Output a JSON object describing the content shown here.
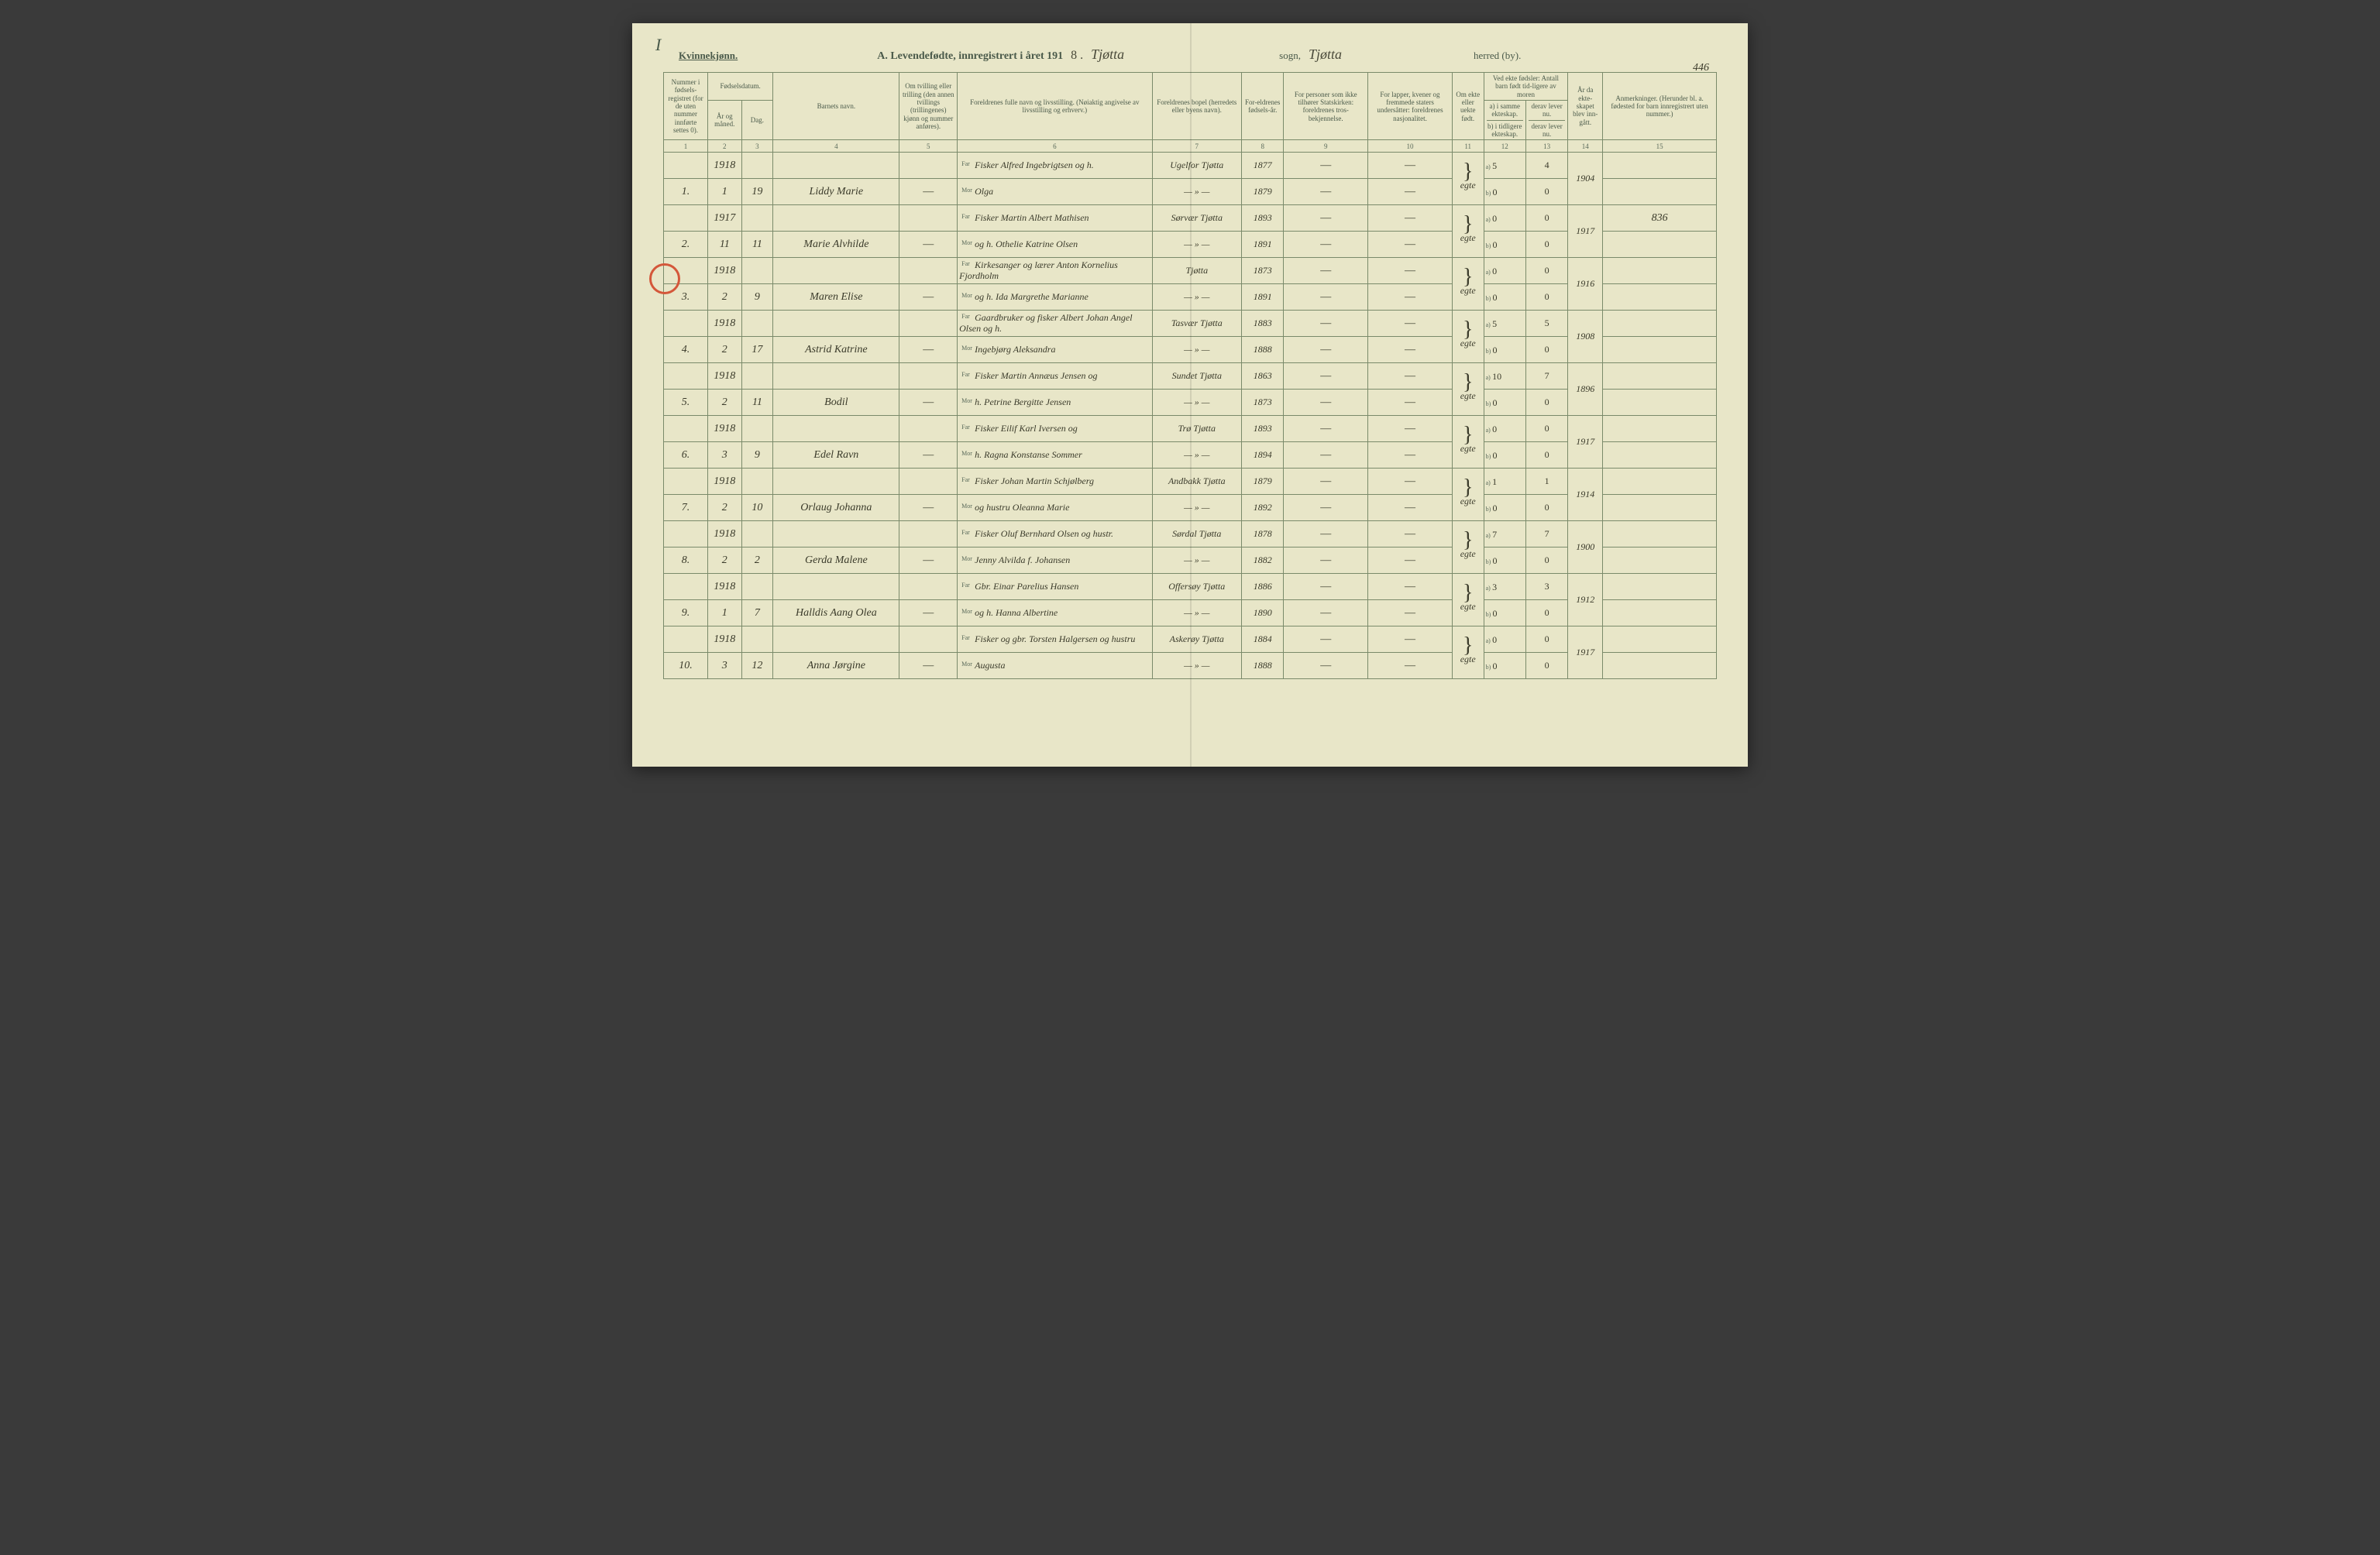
{
  "corner_mark": "I",
  "header": {
    "kvinne_label": "Kvinnekjønn.",
    "title_prefix": "A. Levendefødte, innregistrert i året 191",
    "year_suffix": "8 .",
    "sogn_value": "Tjøtta",
    "sogn_label": "sogn,",
    "herred_value": "Tjøtta",
    "herred_label": "herred (by).",
    "page_number": "446"
  },
  "columns": {
    "c1": "Nummer i fødsels-registret (for de uten nummer innførte settes 0).",
    "c2_top": "Fødselsdatum.",
    "c2a": "År og måned.",
    "c2b": "Dag.",
    "c4": "Barnets navn.",
    "c5": "Om tvilling eller trilling (den annen tvillings (trillingenes) kjønn og nummer anføres).",
    "c6": "Foreldrenes fulle navn og livsstilling. (Nøiaktig angivelse av livsstilling og erhverv.)",
    "c7": "Foreldrenes bopel (herredets eller byens navn).",
    "c8": "For-eldrenes fødsels-år.",
    "c9": "For personer som ikke tilhører Statskirken: foreldrenes tros-bekjennelse.",
    "c10": "For lapper, kvener og fremmede staters undersåtter: foreldrenes nasjonalitet.",
    "c11": "Om ekte eller uekte født.",
    "c12_top": "Ved ekte fødsler: Antall barn født tid-ligere av moren",
    "c12a": "a) i samme ekteskap.",
    "c12b": "b) i tidligere ekteskap.",
    "c13a": "derav lever nu.",
    "c13b": "derav lever nu.",
    "c14": "År da ekte-skapet blev inn-gått.",
    "c15": "Anmerkninger. (Herunder bl. a. fødested for barn innregistrert uten nummer.)"
  },
  "colnums": [
    "1",
    "2",
    "3",
    "4",
    "5",
    "6",
    "7",
    "8",
    "9",
    "10",
    "11",
    "12",
    "13",
    "14",
    "15"
  ],
  "far_label": "Far",
  "mor_label": "Mor",
  "a_label": "a)",
  "b_label": "b)",
  "rows": [
    {
      "num": "",
      "year": "1918",
      "day": "",
      "name": "",
      "twin": "",
      "parent_label": "Far",
      "parent": "Fisker Alfred Ingebrigtsen og h.",
      "bopel": "Ugelfor Tjøtta",
      "fyear": "1877",
      "tros": "—",
      "nasj": "—",
      "ekte": "",
      "ab": "a",
      "aval": "5",
      "dval": "4",
      "aar": "",
      "anm": ""
    },
    {
      "num": "1.",
      "year": "1",
      "day": "19",
      "name": "Liddy Marie",
      "twin": "—",
      "parent_label": "Mor",
      "parent": "Olga",
      "bopel": "— » —",
      "fyear": "1879",
      "tros": "—",
      "nasj": "—",
      "ekte": "egte",
      "ab": "b",
      "aval": "0",
      "dval": "0",
      "aar": "1904",
      "anm": ""
    },
    {
      "num": "",
      "year": "1917",
      "day": "",
      "name": "",
      "twin": "",
      "parent_label": "Far",
      "parent": "Fisker Martin Albert Mathisen",
      "bopel": "Sørvær Tjøtta",
      "fyear": "1893",
      "tros": "—",
      "nasj": "—",
      "ekte": "",
      "ab": "a",
      "aval": "0",
      "dval": "0",
      "aar": "",
      "anm": "836"
    },
    {
      "num": "2.",
      "year": "11",
      "day": "11",
      "name": "Marie Alvhilde",
      "twin": "—",
      "parent_label": "Mor",
      "parent": "og h. Othelie Katrine Olsen",
      "bopel": "— » —",
      "fyear": "1891",
      "tros": "—",
      "nasj": "—",
      "ekte": "egte",
      "ab": "b",
      "aval": "0",
      "dval": "0",
      "aar": "1917",
      "anm": ""
    },
    {
      "num": "",
      "year": "1918",
      "day": "",
      "name": "",
      "twin": "",
      "parent_label": "Far",
      "parent": "Kirkesanger og lærer Anton Kornelius Fjordholm",
      "bopel": "Tjøtta",
      "fyear": "1873",
      "tros": "—",
      "nasj": "—",
      "ekte": "",
      "ab": "a",
      "aval": "0",
      "dval": "0",
      "aar": "",
      "anm": ""
    },
    {
      "num": "3.",
      "year": "2",
      "day": "9",
      "name": "Maren Elise",
      "twin": "—",
      "parent_label": "Mor",
      "parent": "og h. Ida Margrethe Marianne",
      "bopel": "— » —",
      "fyear": "1891",
      "tros": "—",
      "nasj": "—",
      "ekte": "egte",
      "ab": "b",
      "aval": "0",
      "dval": "0",
      "aar": "1916",
      "anm": ""
    },
    {
      "num": "",
      "year": "1918",
      "day": "",
      "name": "",
      "twin": "",
      "parent_label": "Far",
      "parent": "Gaardbruker og fisker Albert Johan Angel Olsen og h.",
      "bopel": "Tasvær Tjøtta",
      "fyear": "1883",
      "tros": "—",
      "nasj": "—",
      "ekte": "",
      "ab": "a",
      "aval": "5",
      "dval": "5",
      "aar": "",
      "anm": ""
    },
    {
      "num": "4.",
      "year": "2",
      "day": "17",
      "name": "Astrid Katrine",
      "twin": "—",
      "parent_label": "Mor",
      "parent": "Ingebjørg Aleksandra",
      "bopel": "— » —",
      "fyear": "1888",
      "tros": "—",
      "nasj": "—",
      "ekte": "egte",
      "ab": "b",
      "aval": "0",
      "dval": "0",
      "aar": "1908",
      "anm": ""
    },
    {
      "num": "",
      "year": "1918",
      "day": "",
      "name": "",
      "twin": "",
      "parent_label": "Far",
      "parent": "Fisker Martin Annæus Jensen og",
      "bopel": "Sundet Tjøtta",
      "fyear": "1863",
      "tros": "—",
      "nasj": "—",
      "ekte": "",
      "ab": "a",
      "aval": "10",
      "dval": "7",
      "aar": "",
      "anm": ""
    },
    {
      "num": "5.",
      "year": "2",
      "day": "11",
      "name": "Bodil",
      "twin": "—",
      "parent_label": "Mor",
      "parent": "h. Petrine Bergitte Jensen",
      "bopel": "— » —",
      "fyear": "1873",
      "tros": "—",
      "nasj": "—",
      "ekte": "egte",
      "ab": "b",
      "aval": "0",
      "dval": "0",
      "aar": "1896",
      "anm": ""
    },
    {
      "num": "",
      "year": "1918",
      "day": "",
      "name": "",
      "twin": "",
      "parent_label": "Far",
      "parent": "Fisker Eilif Karl Iversen og",
      "bopel": "Trø Tjøtta",
      "fyear": "1893",
      "tros": "—",
      "nasj": "—",
      "ekte": "",
      "ab": "a",
      "aval": "0",
      "dval": "0",
      "aar": "",
      "anm": ""
    },
    {
      "num": "6.",
      "year": "3",
      "day": "9",
      "name": "Edel Ravn",
      "twin": "—",
      "parent_label": "Mor",
      "parent": "h. Ragna Konstanse Sommer",
      "bopel": "— » —",
      "fyear": "1894",
      "tros": "—",
      "nasj": "—",
      "ekte": "egte",
      "ab": "b",
      "aval": "0",
      "dval": "0",
      "aar": "1917",
      "anm": ""
    },
    {
      "num": "",
      "year": "1918",
      "day": "",
      "name": "",
      "twin": "",
      "parent_label": "Far",
      "parent": "Fisker Johan Martin Schjølberg",
      "bopel": "Andbakk Tjøtta",
      "fyear": "1879",
      "tros": "—",
      "nasj": "—",
      "ekte": "",
      "ab": "a",
      "aval": "1",
      "dval": "1",
      "aar": "",
      "anm": ""
    },
    {
      "num": "7.",
      "year": "2",
      "day": "10",
      "name": "Orlaug Johanna",
      "twin": "—",
      "parent_label": "Mor",
      "parent": "og hustru Oleanna Marie",
      "bopel": "— » —",
      "fyear": "1892",
      "tros": "—",
      "nasj": "—",
      "ekte": "egte",
      "ab": "b",
      "aval": "0",
      "dval": "0",
      "aar": "1914",
      "anm": ""
    },
    {
      "num": "",
      "year": "1918",
      "day": "",
      "name": "",
      "twin": "",
      "parent_label": "Far",
      "parent": "Fisker Oluf Bernhard Olsen og hustr.",
      "bopel": "Sørdal Tjøtta",
      "fyear": "1878",
      "tros": "—",
      "nasj": "—",
      "ekte": "",
      "ab": "a",
      "aval": "7",
      "dval": "7",
      "aar": "",
      "anm": ""
    },
    {
      "num": "8.",
      "year": "2",
      "day": "2",
      "name": "Gerda Malene",
      "twin": "—",
      "parent_label": "Mor",
      "parent": "Jenny Alvilda f. Johansen",
      "bopel": "— » —",
      "fyear": "1882",
      "tros": "—",
      "nasj": "—",
      "ekte": "egte",
      "ab": "b",
      "aval": "0",
      "dval": "0",
      "aar": "1900",
      "anm": ""
    },
    {
      "num": "",
      "year": "1918",
      "day": "",
      "name": "",
      "twin": "",
      "parent_label": "Far",
      "parent": "Gbr. Einar Parelius Hansen",
      "bopel": "Offersøy Tjøtta",
      "fyear": "1886",
      "tros": "—",
      "nasj": "—",
      "ekte": "",
      "ab": "a",
      "aval": "3",
      "dval": "3",
      "aar": "",
      "anm": ""
    },
    {
      "num": "9.",
      "year": "1",
      "day": "7",
      "name": "Halldis Aang Olea",
      "twin": "—",
      "parent_label": "Mor",
      "parent": "og h. Hanna Albertine",
      "bopel": "— » —",
      "fyear": "1890",
      "tros": "—",
      "nasj": "—",
      "ekte": "egte",
      "ab": "b",
      "aval": "0",
      "dval": "0",
      "aar": "1912",
      "anm": ""
    },
    {
      "num": "",
      "year": "1918",
      "day": "",
      "name": "",
      "twin": "",
      "parent_label": "Far",
      "parent": "Fisker og gbr. Torsten Halgersen og hustru",
      "bopel": "Askerøy Tjøtta",
      "fyear": "1884",
      "tros": "—",
      "nasj": "—",
      "ekte": "",
      "ab": "a",
      "aval": "0",
      "dval": "0",
      "aar": "",
      "anm": ""
    },
    {
      "num": "10.",
      "year": "3",
      "day": "12",
      "name": "Anna Jørgine",
      "twin": "—",
      "parent_label": "Mor",
      "parent": "Augusta",
      "bopel": "— » —",
      "fyear": "1888",
      "tros": "—",
      "nasj": "—",
      "ekte": "egte",
      "ab": "b",
      "aval": "0",
      "dval": "0",
      "aar": "1917",
      "anm": ""
    }
  ],
  "colors": {
    "paper": "#e8e6c8",
    "rule": "#7a8a6a",
    "print": "#4a5a4a",
    "ink": "#3a3a2a",
    "red": "#d4573a"
  },
  "layout": {
    "col_widths_pct": [
      4.2,
      3.2,
      3.0,
      12.0,
      5.5,
      18.5,
      8.5,
      4.0,
      8.0,
      8.0,
      3.0,
      4.0,
      4.0,
      3.3,
      10.8
    ]
  }
}
